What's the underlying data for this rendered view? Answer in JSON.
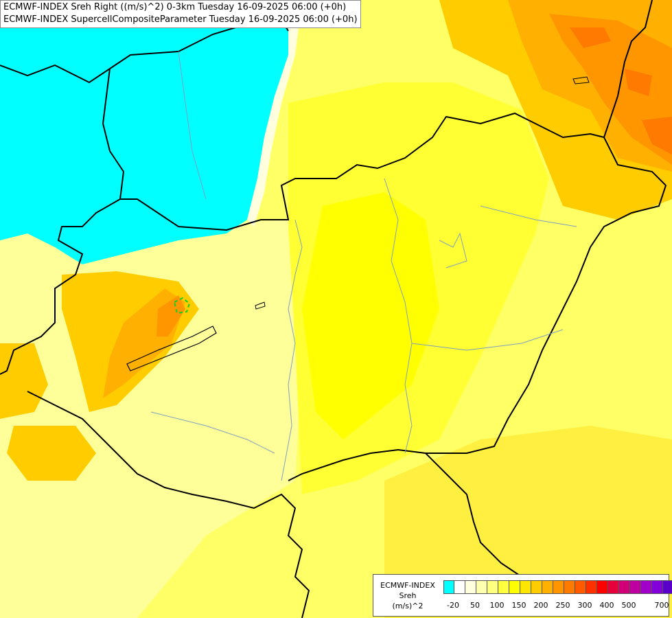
{
  "header": {
    "line1": "ECMWF-INDEX Sreh Right ((m/s)^2) 0-3km Tuesday 16-09-2025 06:00 (+0h)",
    "line2": "ECMWF-INDEX SupercellCompositeParameter Tuesday 16-09-2025 06:00 (+0h)"
  },
  "legend": {
    "line1": "ECMWF-INDEX",
    "line2": "Sreh",
    "line3": "(m/s)^2",
    "colors": [
      "#00ffff",
      "#ffffff",
      "#ffffe0",
      "#ffffb0",
      "#ffff80",
      "#ffff40",
      "#ffff00",
      "#ffe600",
      "#ffcc00",
      "#ffb000",
      "#ff9600",
      "#ff7a00",
      "#ff5a00",
      "#ff3000",
      "#ff0000",
      "#e6003c",
      "#d20078",
      "#be00a0",
      "#a000c8",
      "#8200dc",
      "#5a00c8",
      "#3c00a0",
      "#0a0a78"
    ],
    "tick_labels": [
      "-20",
      "50",
      "100",
      "150",
      "200",
      "250",
      "300",
      "400",
      "500",
      "700"
    ]
  },
  "map_colors": {
    "cyan": "#00ffff",
    "pale_yellow": "#ffff99",
    "yellow": "#ffff00",
    "deep_yellow": "#ffe600",
    "orange": "#ffb000",
    "dark_orange": "#ff7a00",
    "border": "#000000",
    "river": "#7f9fbf",
    "green_contour": "#22cc22"
  }
}
